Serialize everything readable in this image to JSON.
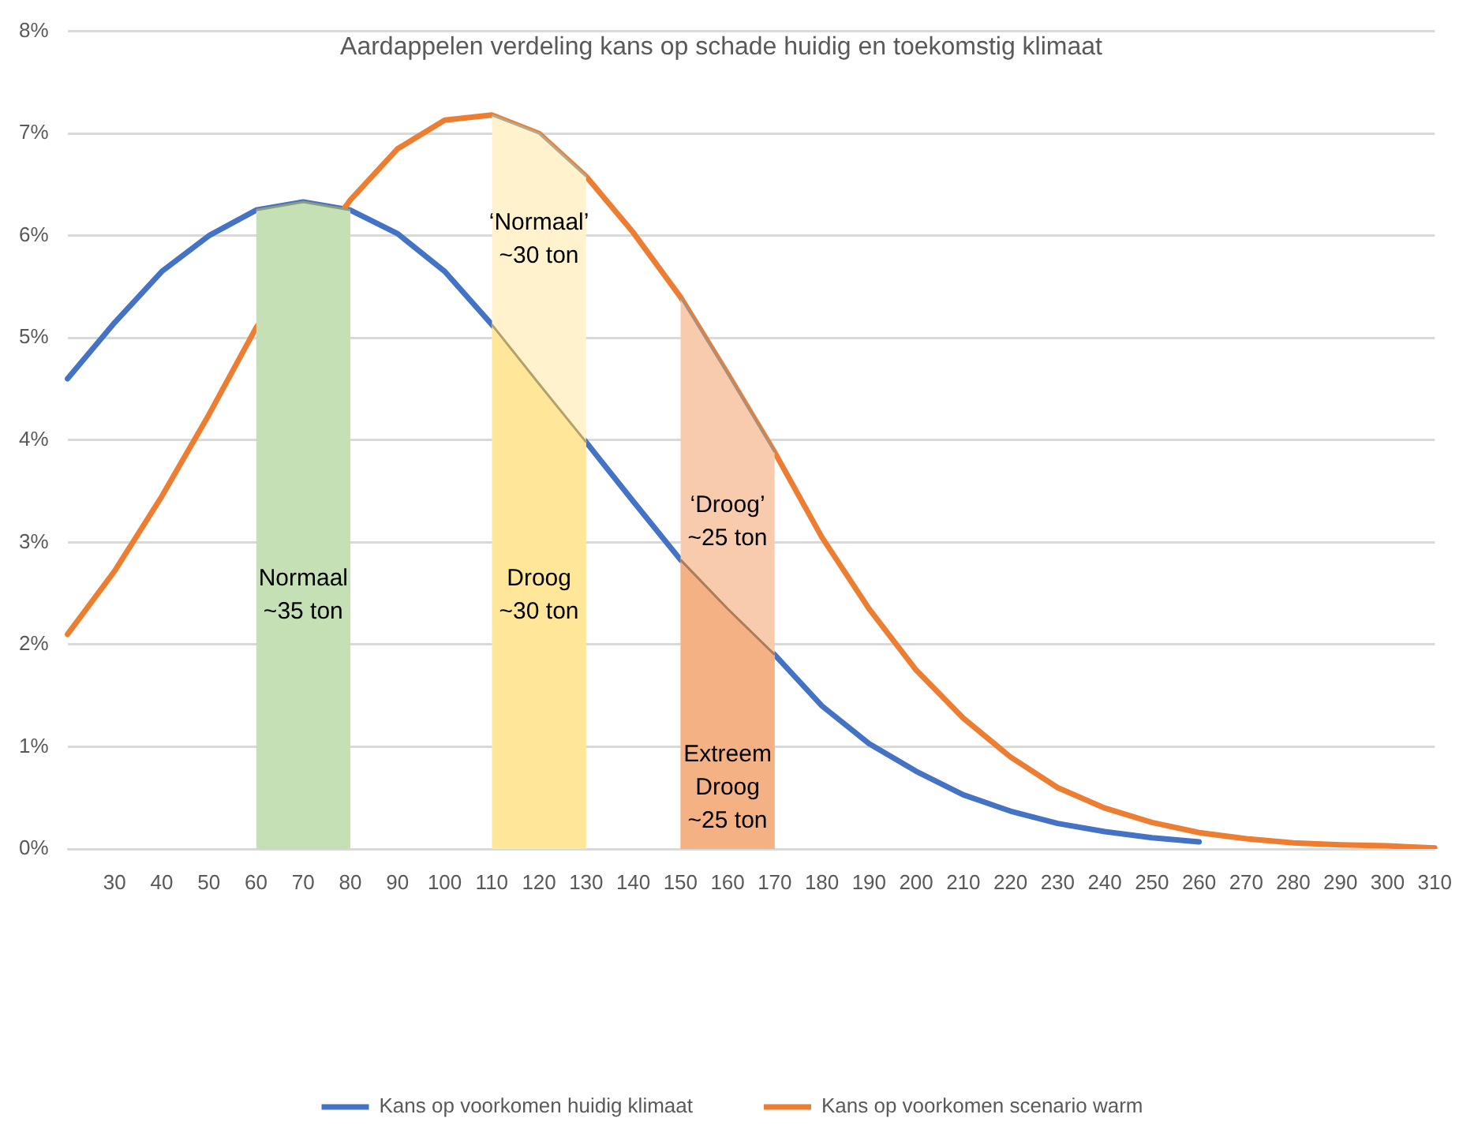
{
  "chart_data": {
    "type": "line",
    "title": "Aardappelen verdeling kans op schade huidig en toekomstig klimaat",
    "categories": [
      null,
      "30",
      "40",
      "50",
      "60",
      "70",
      "80",
      "90",
      "100",
      "110",
      "120",
      "130",
      "140",
      "150",
      "160",
      "170",
      "180",
      "190",
      "200",
      "210",
      "220",
      "230",
      "240",
      "250",
      "260",
      "270",
      "280",
      "290",
      "300",
      "310"
    ],
    "series": [
      {
        "type": "area",
        "color": "#c5e0b4",
        "values": [
          null,
          null,
          null,
          null,
          6.25,
          6.33,
          6.25,
          null,
          null,
          null,
          null,
          null,
          null,
          null,
          null,
          null,
          null,
          null,
          null,
          null,
          null,
          null,
          null,
          null,
          null,
          null,
          null,
          null,
          null,
          null
        ]
      },
      {
        "type": "area",
        "color": "#fff2cc",
        "values": [
          null,
          null,
          null,
          null,
          null,
          null,
          null,
          null,
          null,
          7.18,
          7.0,
          6.58,
          null,
          null,
          null,
          null,
          null,
          null,
          null,
          null,
          null,
          null,
          null,
          null,
          null,
          null,
          null,
          null,
          null,
          null
        ]
      },
      {
        "type": "area",
        "color": "#ffe699",
        "values": [
          null,
          null,
          null,
          null,
          null,
          null,
          null,
          null,
          null,
          5.13,
          4.55,
          3.98,
          null,
          null,
          null,
          null,
          null,
          null,
          null,
          null,
          null,
          null,
          null,
          null,
          null,
          null,
          null,
          null,
          null,
          null
        ]
      },
      {
        "type": "area",
        "color": "#f8cbad",
        "values": [
          null,
          null,
          null,
          null,
          null,
          null,
          null,
          null,
          null,
          null,
          null,
          null,
          null,
          5.4,
          4.65,
          3.88,
          null,
          null,
          null,
          null,
          null,
          null,
          null,
          null,
          null,
          null,
          null,
          null,
          null,
          null
        ]
      },
      {
        "type": "area",
        "color": "#f4b183",
        "values": [
          null,
          null,
          null,
          null,
          null,
          null,
          null,
          null,
          null,
          null,
          null,
          null,
          null,
          2.83,
          2.35,
          1.9,
          null,
          null,
          null,
          null,
          null,
          null,
          null,
          null,
          null,
          null,
          null,
          null,
          null,
          null
        ]
      },
      {
        "name": "Kans op voorkomen huidig klimaat",
        "color": "#4472c4",
        "values": [
          4.6,
          5.15,
          5.65,
          6.0,
          6.25,
          6.33,
          6.25,
          6.02,
          5.65,
          5.13,
          null,
          3.98,
          3.4,
          2.83,
          null,
          1.9,
          1.4,
          1.03,
          0.76,
          0.53,
          0.37,
          0.25,
          0.17,
          0.11,
          0.07,
          null,
          null,
          null,
          null,
          null
        ]
      },
      {
        "name": "Kans op voorkomen scenario warm",
        "color": "#ed7d31",
        "values": [
          2.1,
          2.72,
          3.45,
          4.25,
          5.1,
          null,
          6.35,
          6.85,
          7.13,
          7.18,
          7.0,
          6.58,
          6.03,
          5.4,
          4.65,
          3.88,
          3.05,
          2.35,
          1.75,
          1.28,
          0.9,
          0.6,
          0.4,
          0.26,
          0.16,
          0.1,
          0.06,
          0.04,
          0.03,
          0.01
        ]
      }
    ],
    "ylim": [
      0,
      8
    ],
    "yticks": [
      {
        "value": 0,
        "label": "0%"
      },
      {
        "value": 1,
        "label": "1%"
      },
      {
        "value": 2,
        "label": "2%"
      },
      {
        "value": 3,
        "label": "3%"
      },
      {
        "value": 4,
        "label": "4%"
      },
      {
        "value": 5,
        "label": "5%"
      },
      {
        "value": 6,
        "label": "6%"
      },
      {
        "value": 7,
        "label": "7%"
      },
      {
        "value": 8,
        "label": "8%"
      }
    ],
    "grid": "y",
    "legend": "bottom",
    "annotations": [
      "Normaal\n~35 ton",
      "‘Normaal’\n~30 ton",
      "Droog\n~30 ton",
      "‘Droog’\n~25 ton",
      "Extreem\nDroog\n~25 ton"
    ]
  }
}
